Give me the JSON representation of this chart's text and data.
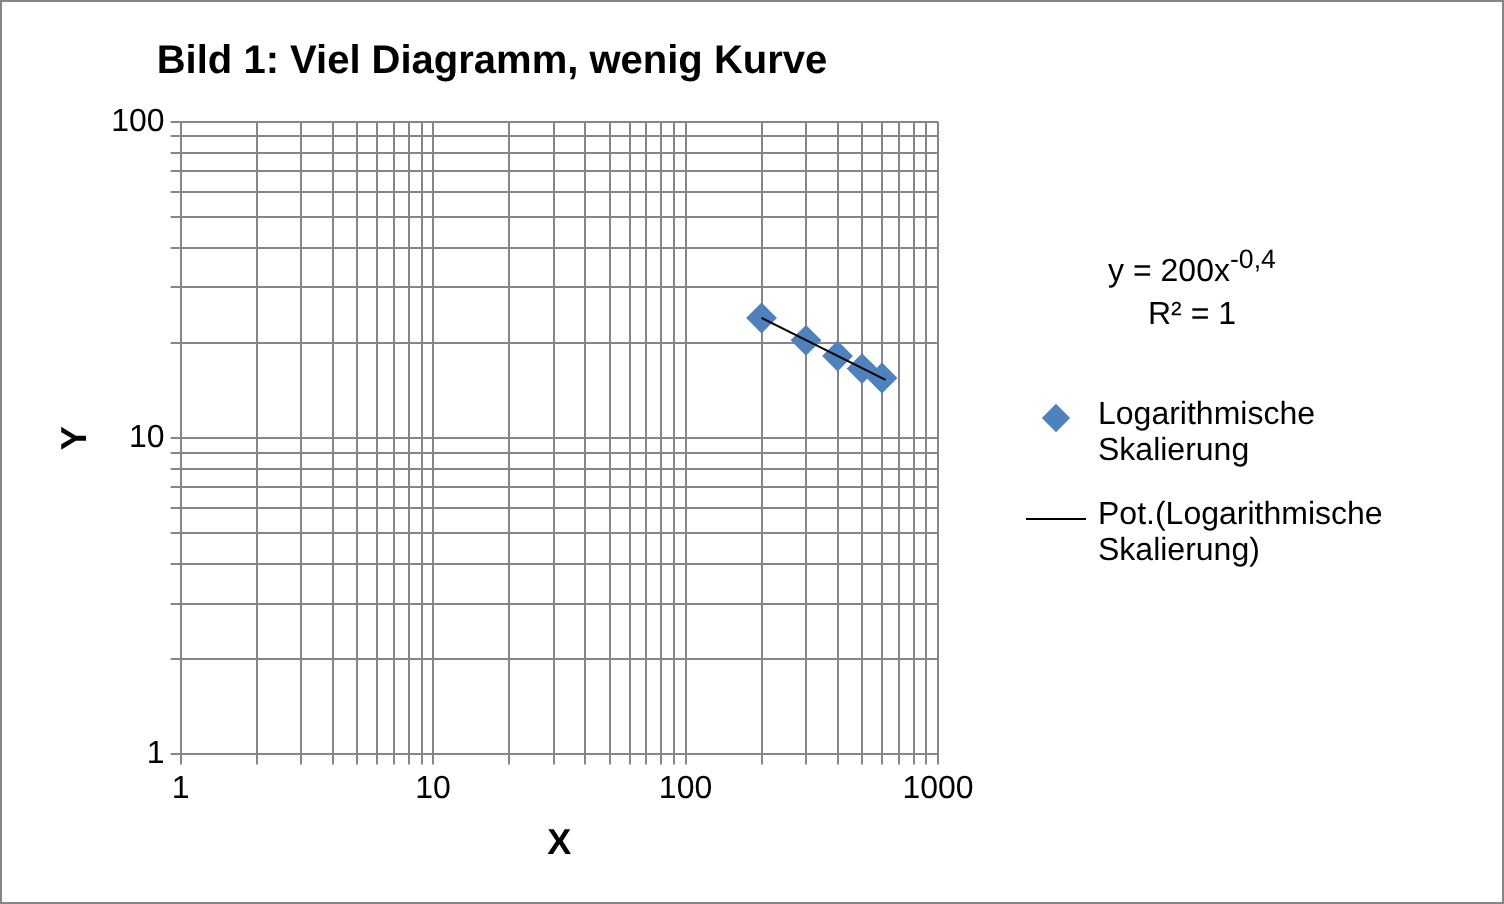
{
  "chart_data": {
    "type": "scatter",
    "title": "Bild 1: Viel Diagramm, wenig Kurve",
    "xlabel": "X",
    "ylabel": "Y",
    "series": [
      {
        "name": "Logarithmische Skalierung",
        "color": "#4f81bd",
        "x": [
          200,
          300,
          400,
          500,
          600
        ],
        "values": [
          24,
          20.4,
          18.2,
          16.6,
          15.5
        ],
        "marker": "diamond"
      },
      {
        "name": "Pot.(Logarithmische Skalierung)",
        "type": "line",
        "color": "#000000",
        "x": [
          200,
          620
        ],
        "values": [
          24,
          15.3
        ],
        "marker": "none"
      }
    ],
    "log": "xy",
    "xlim": [
      1,
      1000
    ],
    "ylim": [
      1,
      100
    ],
    "xticks": [
      1,
      {
        "value": 2,
        "label": null
      },
      {
        "value": 3,
        "label": null
      },
      {
        "value": 4,
        "label": null
      },
      {
        "value": 5,
        "label": null
      },
      {
        "value": 6,
        "label": null
      },
      {
        "value": 7,
        "label": null
      },
      {
        "value": 8,
        "label": null
      },
      {
        "value": 9,
        "label": null
      },
      10,
      {
        "value": 20,
        "label": null
      },
      {
        "value": 30,
        "label": null
      },
      {
        "value": 40,
        "label": null
      },
      {
        "value": 50,
        "label": null
      },
      {
        "value": 60,
        "label": null
      },
      {
        "value": 70,
        "label": null
      },
      {
        "value": 80,
        "label": null
      },
      {
        "value": 90,
        "label": null
      },
      100,
      {
        "value": 200,
        "label": null
      },
      {
        "value": 300,
        "label": null
      },
      {
        "value": 400,
        "label": null
      },
      {
        "value": 500,
        "label": null
      },
      {
        "value": 600,
        "label": null
      },
      {
        "value": 700,
        "label": null
      },
      {
        "value": 800,
        "label": null
      },
      {
        "value": 900,
        "label": null
      },
      1000
    ],
    "yticks": [
      1,
      {
        "value": 2,
        "label": null
      },
      {
        "value": 3,
        "label": null
      },
      {
        "value": 4,
        "label": null
      },
      {
        "value": 5,
        "label": null
      },
      {
        "value": 6,
        "label": null
      },
      {
        "value": 7,
        "label": null
      },
      {
        "value": 8,
        "label": null
      },
      {
        "value": 9,
        "label": null
      },
      10,
      {
        "value": 20,
        "label": null
      },
      {
        "value": 30,
        "label": null
      },
      {
        "value": 40,
        "label": null
      },
      {
        "value": 50,
        "label": null
      },
      {
        "value": 60,
        "label": null
      },
      {
        "value": 70,
        "label": null
      },
      {
        "value": 80,
        "label": null
      },
      {
        "value": 90,
        "label": null
      },
      100
    ],
    "grid": true,
    "legend": "right",
    "annotations": [
      "y = 200x$^{-0,4}$",
      "R² = 1"
    ]
  }
}
